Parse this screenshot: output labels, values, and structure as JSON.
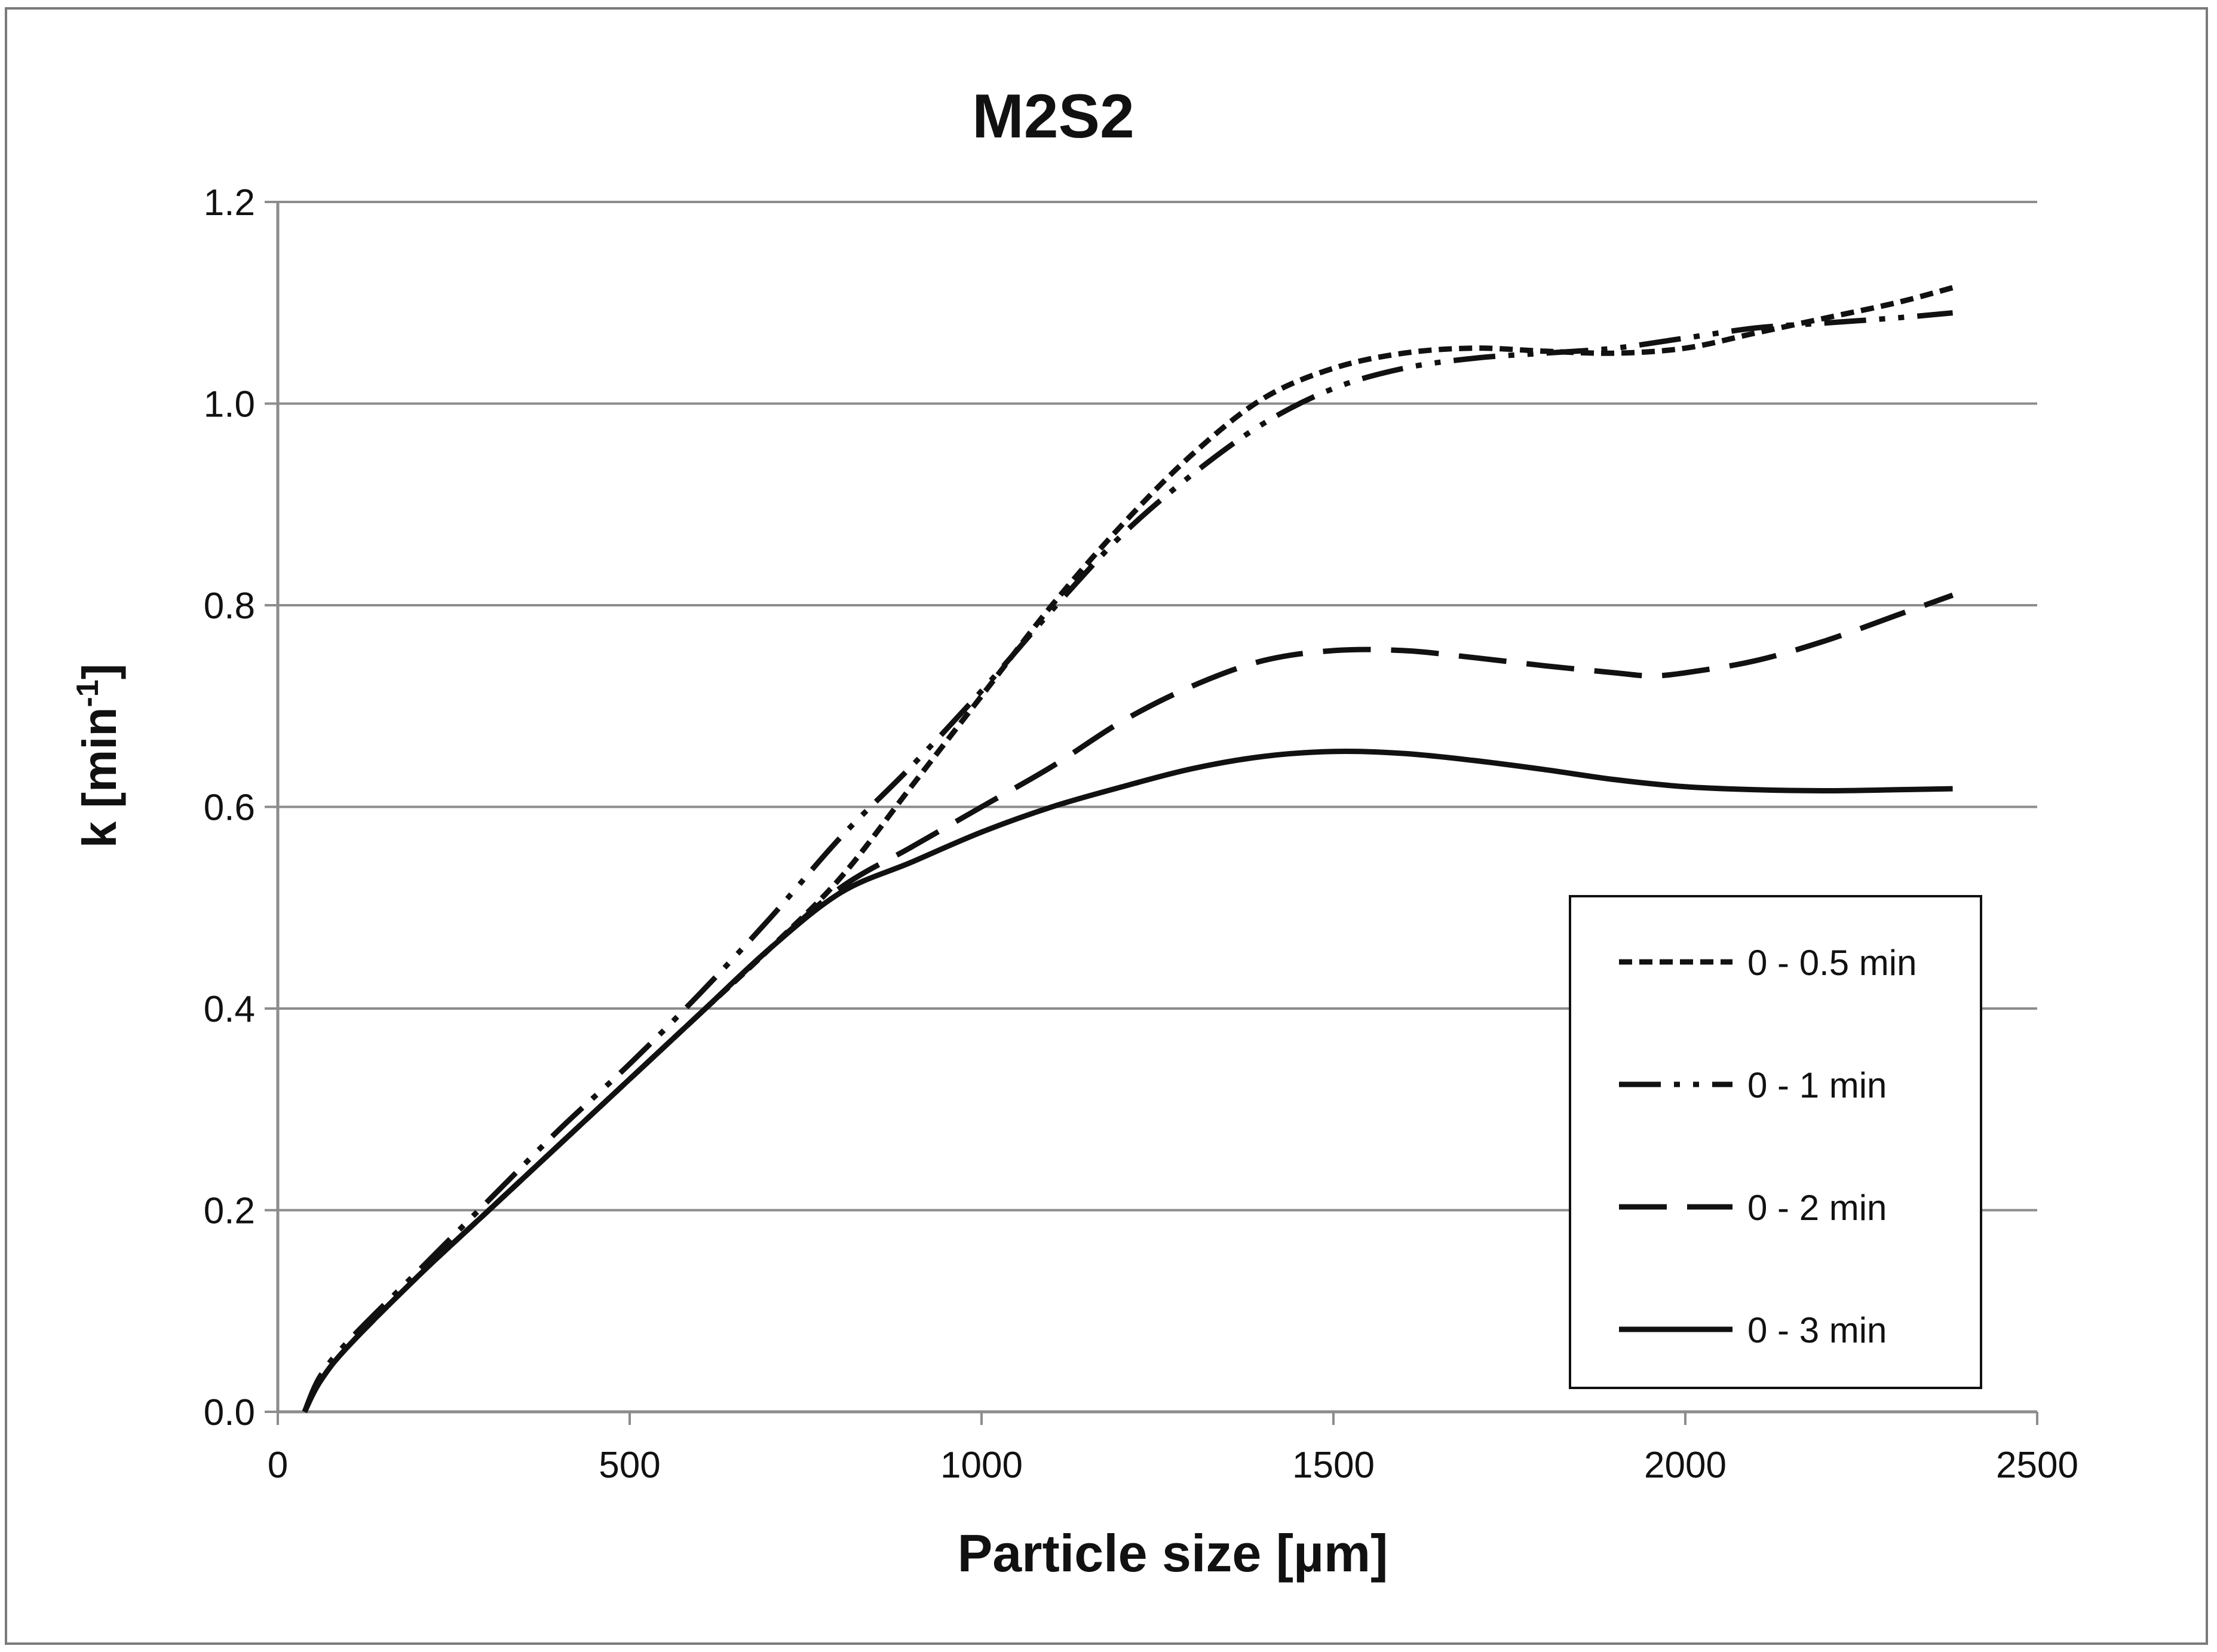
{
  "chart_data": {
    "type": "line",
    "title": "M2S2",
    "xlabel": "Particle size [µm]",
    "ylabel_main": "k [min",
    "ylabel_sup": "-1",
    "ylabel_close": "]",
    "xlim": [
      0,
      2500
    ],
    "ylim": [
      0,
      1.2
    ],
    "xticks": [
      0,
      500,
      1000,
      1500,
      2000,
      2500
    ],
    "xtick_labels": [
      "0",
      "500",
      "1000",
      "1500",
      "2000",
      "2500"
    ],
    "yticks": [
      0,
      0.2,
      0.4,
      0.6,
      0.8,
      1.0,
      1.2
    ],
    "ytick_labels": [
      "0.0",
      "0.2",
      "0.4",
      "0.6",
      "0.8",
      "1.0",
      "1.2"
    ],
    "grid": "horizontal",
    "legend_position": "bottom-right",
    "series": [
      {
        "name": "0 - 0.5 min",
        "style": "short-dash",
        "x": [
          38,
          60,
          100,
          200,
          300,
          400,
          500,
          600,
          700,
          800,
          900,
          1000,
          1100,
          1200,
          1300,
          1400,
          1500,
          1600,
          1700,
          1800,
          1900,
          2000,
          2100,
          2200,
          2300,
          2380
        ],
        "y": [
          0.0,
          0.03,
          0.065,
          0.135,
          0.2,
          0.265,
          0.33,
          0.395,
          0.46,
          0.53,
          0.62,
          0.71,
          0.8,
          0.88,
          0.95,
          1.005,
          1.035,
          1.05,
          1.055,
          1.052,
          1.05,
          1.055,
          1.07,
          1.085,
          1.1,
          1.115
        ]
      },
      {
        "name": "0 - 1 min",
        "style": "dash-dot-dot",
        "x": [
          38,
          60,
          100,
          200,
          300,
          400,
          500,
          600,
          700,
          800,
          900,
          1000,
          1100,
          1200,
          1300,
          1400,
          1500,
          1600,
          1700,
          1800,
          1900,
          2000,
          2100,
          2200,
          2300,
          2380
        ],
        "y": [
          0.0,
          0.035,
          0.07,
          0.14,
          0.21,
          0.28,
          0.345,
          0.415,
          0.49,
          0.57,
          0.64,
          0.715,
          0.795,
          0.87,
          0.93,
          0.98,
          1.015,
          1.035,
          1.045,
          1.05,
          1.055,
          1.065,
          1.075,
          1.08,
          1.085,
          1.09
        ]
      },
      {
        "name": "0 - 2 min",
        "style": "long-dash",
        "x": [
          38,
          60,
          100,
          200,
          300,
          400,
          500,
          600,
          700,
          800,
          900,
          1000,
          1100,
          1200,
          1300,
          1400,
          1500,
          1600,
          1700,
          1800,
          1900,
          1950,
          2000,
          2100,
          2200,
          2300,
          2380
        ],
        "y": [
          0.0,
          0.03,
          0.065,
          0.135,
          0.2,
          0.265,
          0.33,
          0.395,
          0.46,
          0.52,
          0.56,
          0.6,
          0.64,
          0.685,
          0.72,
          0.745,
          0.755,
          0.755,
          0.748,
          0.74,
          0.733,
          0.73,
          0.733,
          0.745,
          0.765,
          0.79,
          0.81
        ]
      },
      {
        "name": "0 - 3 min",
        "style": "solid",
        "x": [
          38,
          60,
          100,
          200,
          300,
          400,
          500,
          600,
          700,
          800,
          900,
          1000,
          1100,
          1200,
          1300,
          1400,
          1500,
          1600,
          1700,
          1800,
          1900,
          2000,
          2100,
          2200,
          2300,
          2380
        ],
        "y": [
          0.0,
          0.03,
          0.065,
          0.135,
          0.2,
          0.265,
          0.33,
          0.395,
          0.46,
          0.515,
          0.545,
          0.575,
          0.6,
          0.62,
          0.638,
          0.65,
          0.655,
          0.653,
          0.646,
          0.637,
          0.627,
          0.62,
          0.617,
          0.616,
          0.617,
          0.618
        ]
      }
    ]
  }
}
